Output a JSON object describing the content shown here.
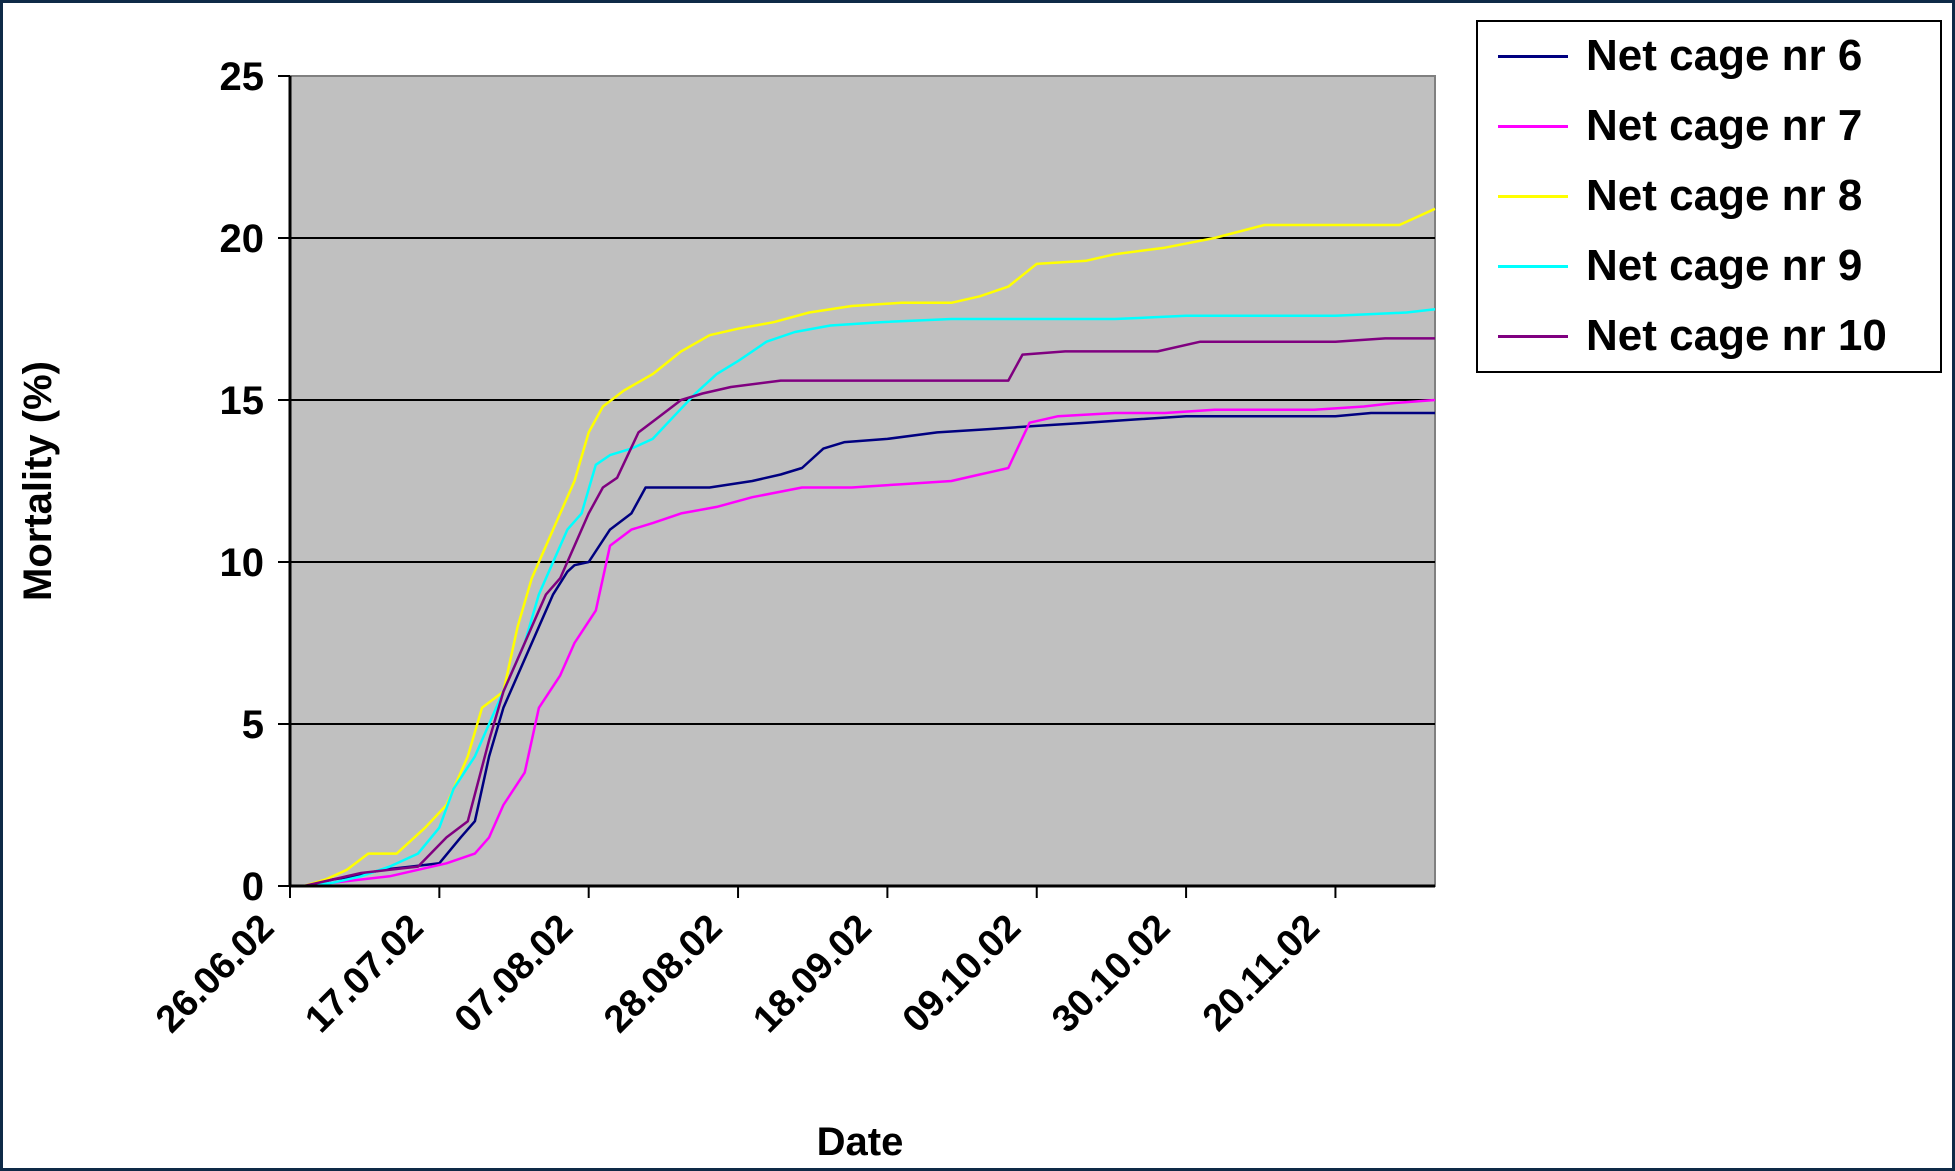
{
  "chart_data": {
    "type": "line",
    "xlabel": "Date",
    "ylabel": "Mortality (%)",
    "ylim": [
      0,
      25
    ],
    "yticks": [
      0,
      5,
      10,
      15,
      20,
      25
    ],
    "xlim": [
      "2002-06-26",
      "2002-12-04"
    ],
    "xticks": [
      "2002-06-26",
      "2002-07-17",
      "2002-08-07",
      "2002-08-28",
      "2002-09-18",
      "2002-10-09",
      "2002-10-30",
      "2002-11-20"
    ],
    "xtick_labels": [
      "26.06.02",
      "17.07.02",
      "07.08.02",
      "28.08.02",
      "18.09.02",
      "09.10.02",
      "30.10.02",
      "20.11.02"
    ],
    "grid": "horizontal",
    "plot_background": "#c0c0c0",
    "legend_position": "top-right",
    "series": [
      {
        "name": "Net cage nr 6",
        "color": "#000080",
        "x": [
          "2002-06-28",
          "2002-06-30",
          "2002-07-02",
          "2002-07-05",
          "2002-07-09",
          "2002-07-13",
          "2002-07-17",
          "2002-07-20",
          "2002-07-22",
          "2002-07-24",
          "2002-07-26",
          "2002-07-28",
          "2002-07-31",
          "2002-08-02",
          "2002-08-04",
          "2002-08-05",
          "2002-08-07",
          "2002-08-10",
          "2002-08-13",
          "2002-08-15",
          "2002-08-18",
          "2002-08-24",
          "2002-08-30",
          "2002-09-03",
          "2002-09-06",
          "2002-09-09",
          "2002-09-12",
          "2002-09-18",
          "2002-09-25",
          "2002-10-02",
          "2002-10-09",
          "2002-10-16",
          "2002-10-23",
          "2002-10-30",
          "2002-11-06",
          "2002-11-13",
          "2002-11-20",
          "2002-11-25",
          "2002-12-04"
        ],
        "y": [
          0,
          0.1,
          0.2,
          0.3,
          0.5,
          0.6,
          0.7,
          1.5,
          2.0,
          4.0,
          5.5,
          6.5,
          8.0,
          9.0,
          9.7,
          9.9,
          10.0,
          11.0,
          11.5,
          12.3,
          12.3,
          12.3,
          12.5,
          12.7,
          12.9,
          13.5,
          13.7,
          13.8,
          14.0,
          14.1,
          14.2,
          14.3,
          14.4,
          14.5,
          14.5,
          14.5,
          14.5,
          14.6,
          14.6
        ]
      },
      {
        "name": "Net cage nr 7",
        "color": "#ff00ff",
        "x": [
          "2002-06-28",
          "2002-07-02",
          "2002-07-06",
          "2002-07-10",
          "2002-07-14",
          "2002-07-18",
          "2002-07-22",
          "2002-07-24",
          "2002-07-26",
          "2002-07-29",
          "2002-07-31",
          "2002-08-03",
          "2002-08-05",
          "2002-08-08",
          "2002-08-10",
          "2002-08-13",
          "2002-08-16",
          "2002-08-20",
          "2002-08-25",
          "2002-08-30",
          "2002-09-06",
          "2002-09-13",
          "2002-09-20",
          "2002-09-27",
          "2002-10-01",
          "2002-10-03",
          "2002-10-05",
          "2002-10-08",
          "2002-10-12",
          "2002-10-20",
          "2002-10-27",
          "2002-11-03",
          "2002-11-10",
          "2002-11-17",
          "2002-11-24",
          "2002-11-28",
          "2002-12-04"
        ],
        "y": [
          0,
          0.1,
          0.2,
          0.3,
          0.5,
          0.7,
          1.0,
          1.5,
          2.5,
          3.5,
          5.5,
          6.5,
          7.5,
          8.5,
          10.5,
          11.0,
          11.2,
          11.5,
          11.7,
          12.0,
          12.3,
          12.3,
          12.4,
          12.5,
          12.7,
          12.8,
          12.9,
          14.3,
          14.5,
          14.6,
          14.6,
          14.7,
          14.7,
          14.7,
          14.8,
          14.9,
          15.0
        ]
      },
      {
        "name": "Net cage nr 8",
        "color": "#ffff00",
        "x": [
          "2002-06-28",
          "2002-07-01",
          "2002-07-04",
          "2002-07-07",
          "2002-07-11",
          "2002-07-15",
          "2002-07-18",
          "2002-07-21",
          "2002-07-23",
          "2002-07-26",
          "2002-07-28",
          "2002-07-30",
          "2002-08-01",
          "2002-08-03",
          "2002-08-05",
          "2002-08-07",
          "2002-08-09",
          "2002-08-12",
          "2002-08-16",
          "2002-08-20",
          "2002-08-24",
          "2002-08-28",
          "2002-09-02",
          "2002-09-07",
          "2002-09-13",
          "2002-09-20",
          "2002-09-27",
          "2002-10-01",
          "2002-10-05",
          "2002-10-09",
          "2002-10-16",
          "2002-10-20",
          "2002-10-27",
          "2002-11-03",
          "2002-11-10",
          "2002-11-17",
          "2002-11-24",
          "2002-11-29",
          "2002-12-04"
        ],
        "y": [
          0,
          0.2,
          0.5,
          1.0,
          1.0,
          1.8,
          2.5,
          4.0,
          5.5,
          6.0,
          8.0,
          9.5,
          10.5,
          11.5,
          12.5,
          14.0,
          14.8,
          15.3,
          15.8,
          16.5,
          17.0,
          17.2,
          17.4,
          17.7,
          17.9,
          18.0,
          18.0,
          18.2,
          18.5,
          19.2,
          19.3,
          19.5,
          19.7,
          20.0,
          20.4,
          20.4,
          20.4,
          20.4,
          20.9
        ]
      },
      {
        "name": "Net cage nr 9",
        "color": "#00ffff",
        "x": [
          "2002-06-28",
          "2002-07-02",
          "2002-07-06",
          "2002-07-10",
          "2002-07-14",
          "2002-07-17",
          "2002-07-19",
          "2002-07-22",
          "2002-07-25",
          "2002-07-27",
          "2002-07-29",
          "2002-07-31",
          "2002-08-02",
          "2002-08-04",
          "2002-08-06",
          "2002-08-08",
          "2002-08-10",
          "2002-08-13",
          "2002-08-16",
          "2002-08-19",
          "2002-08-22",
          "2002-08-25",
          "2002-08-28",
          "2002-09-01",
          "2002-09-05",
          "2002-09-10",
          "2002-09-17",
          "2002-09-27",
          "2002-10-09",
          "2002-10-20",
          "2002-10-30",
          "2002-11-10",
          "2002-11-20",
          "2002-11-30",
          "2002-12-04"
        ],
        "y": [
          0,
          0.1,
          0.3,
          0.6,
          1.0,
          1.8,
          3.0,
          4.0,
          5.5,
          6.5,
          7.5,
          9.0,
          10.0,
          11.0,
          11.5,
          13.0,
          13.3,
          13.5,
          13.8,
          14.5,
          15.2,
          15.8,
          16.2,
          16.8,
          17.1,
          17.3,
          17.4,
          17.5,
          17.5,
          17.5,
          17.6,
          17.6,
          17.6,
          17.7,
          17.8
        ]
      },
      {
        "name": "Net cage nr 10",
        "color": "#800080",
        "x": [
          "2002-06-28",
          "2002-07-02",
          "2002-07-06",
          "2002-07-10",
          "2002-07-14",
          "2002-07-18",
          "2002-07-21",
          "2002-07-24",
          "2002-07-26",
          "2002-07-28",
          "2002-07-30",
          "2002-08-01",
          "2002-08-03",
          "2002-08-05",
          "2002-08-07",
          "2002-08-09",
          "2002-08-11",
          "2002-08-14",
          "2002-08-17",
          "2002-08-20",
          "2002-08-23",
          "2002-08-27",
          "2002-09-03",
          "2002-09-10",
          "2002-09-18",
          "2002-09-27",
          "2002-10-05",
          "2002-10-07",
          "2002-10-13",
          "2002-10-20",
          "2002-10-26",
          "2002-11-01",
          "2002-11-10",
          "2002-11-20",
          "2002-11-27",
          "2002-12-04"
        ],
        "y": [
          0,
          0.2,
          0.4,
          0.5,
          0.6,
          1.5,
          2.0,
          4.5,
          6.0,
          7.0,
          8.0,
          9.0,
          9.5,
          10.5,
          11.5,
          12.3,
          12.6,
          14.0,
          14.5,
          15.0,
          15.2,
          15.4,
          15.6,
          15.6,
          15.6,
          15.6,
          15.6,
          16.4,
          16.5,
          16.5,
          16.5,
          16.8,
          16.8,
          16.8,
          16.9,
          16.9
        ]
      }
    ]
  }
}
